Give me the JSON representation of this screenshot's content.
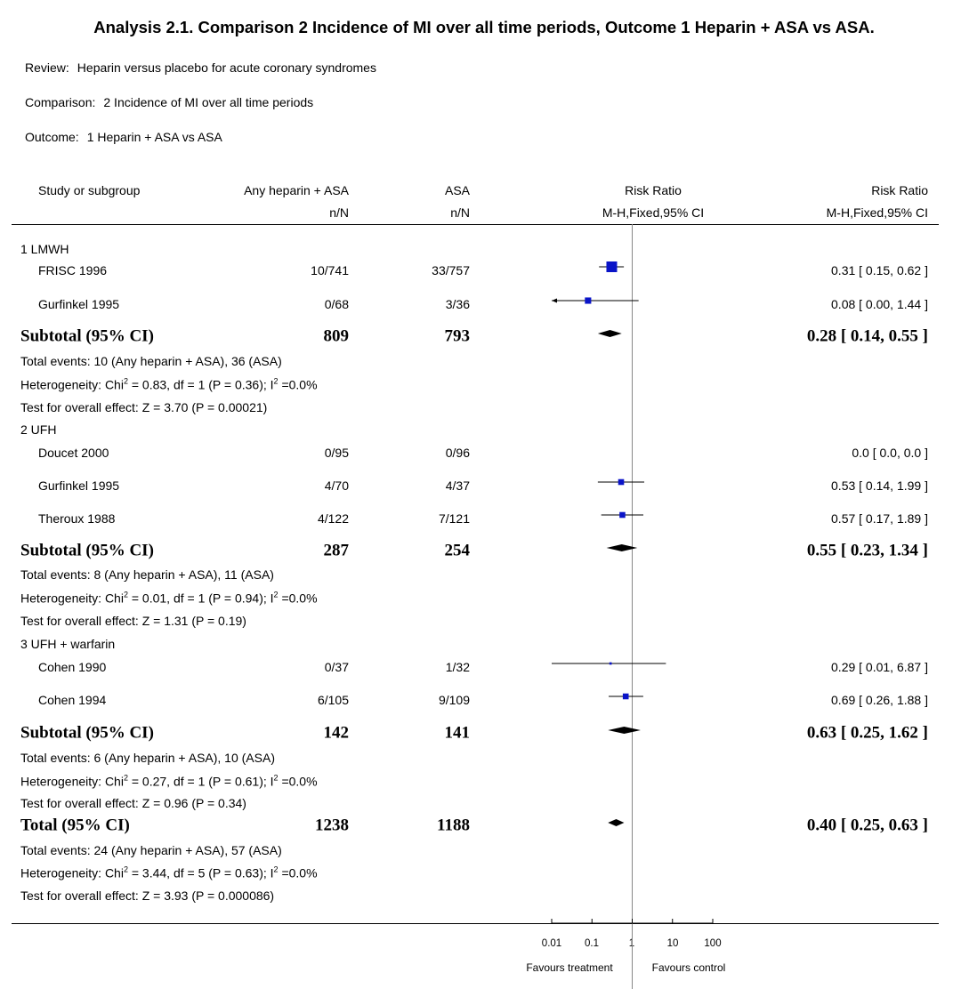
{
  "title": "Analysis 2.1.   Comparison 2 Incidence of MI over all time periods, Outcome 1 Heparin + ASA vs ASA.",
  "meta": {
    "review_key": "Review:",
    "review_val": "Heparin versus placebo for acute coronary syndromes",
    "comparison_key": "Comparison:",
    "comparison_val": "2 Incidence of MI over all time periods",
    "outcome_key": "Outcome:",
    "outcome_val": "1 Heparin + ASA vs ASA"
  },
  "header": {
    "study": "Study or subgroup",
    "group1": "Any heparin + ASA",
    "group1_sub": "n/N",
    "group2": "ASA",
    "group2_sub": "n/N",
    "rr_plot": "Risk Ratio",
    "rr_plot_sub": "M-H,Fixed,95% CI",
    "rr_text": "Risk Ratio",
    "rr_text_sub": "M-H,Fixed,95% CI"
  },
  "subgroups": [
    {
      "label": "1 LMWH",
      "studies": [
        {
          "name": "FRISC 1996",
          "g1": "10/741",
          "g2": "33/757",
          "ci": "0.31 [ 0.15, 0.62 ]"
        },
        {
          "name": "Gurfinkel 1995",
          "g1": "0/68",
          "g2": "3/36",
          "ci": "0.08 [ 0.00, 1.44 ]"
        }
      ],
      "subtotal": {
        "label": "Subtotal (95% CI)",
        "g1": "809",
        "g2": "793",
        "ci": "0.28 [ 0.14, 0.55 ]"
      },
      "notes": {
        "events": "Total events: 10 (Any heparin + ASA), 36 (ASA)",
        "het_a": "Heterogeneity: Chi",
        "het_b": " = 0.83, df = 1 (P = 0.36); I",
        "het_c": " =0.0%",
        "test": "Test for overall effect: Z = 3.70 (P = 0.00021)"
      }
    },
    {
      "label": "2 UFH",
      "studies": [
        {
          "name": "Doucet 2000",
          "g1": "0/95",
          "g2": "0/96",
          "ci": "0.0 [ 0.0, 0.0 ]"
        },
        {
          "name": "Gurfinkel 1995",
          "g1": "4/70",
          "g2": "4/37",
          "ci": "0.53 [ 0.14, 1.99 ]"
        },
        {
          "name": "Theroux 1988",
          "g1": "4/122",
          "g2": "7/121",
          "ci": "0.57 [ 0.17, 1.89 ]"
        }
      ],
      "subtotal": {
        "label": "Subtotal (95% CI)",
        "g1": "287",
        "g2": "254",
        "ci": "0.55 [ 0.23, 1.34 ]"
      },
      "notes": {
        "events": "Total events: 8 (Any heparin + ASA), 11 (ASA)",
        "het_a": "Heterogeneity: Chi",
        "het_b": " = 0.01, df = 1 (P = 0.94); I",
        "het_c": " =0.0%",
        "test": "Test for overall effect: Z = 1.31 (P = 0.19)"
      }
    },
    {
      "label": "3 UFH + warfarin",
      "studies": [
        {
          "name": "Cohen 1990",
          "g1": "0/37",
          "g2": "1/32",
          "ci": "0.29 [ 0.01, 6.87 ]"
        },
        {
          "name": "Cohen 1994",
          "g1": "6/105",
          "g2": "9/109",
          "ci": "0.69 [ 0.26, 1.88 ]"
        }
      ],
      "subtotal": {
        "label": "Subtotal (95% CI)",
        "g1": "142",
        "g2": "141",
        "ci": "0.63 [ 0.25, 1.62 ]"
      },
      "notes": {
        "events": "Total events: 6 (Any heparin + ASA), 10 (ASA)",
        "het_a": "Heterogeneity: Chi",
        "het_b": " = 0.27, df = 1 (P = 0.61); I",
        "het_c": " =0.0%",
        "test": "Test for overall effect: Z = 0.96 (P = 0.34)"
      }
    }
  ],
  "total": {
    "label": "Total (95% CI)",
    "g1": "1238",
    "g2": "1188",
    "ci": "0.40 [ 0.25, 0.63 ]",
    "notes": {
      "events": "Total events: 24 (Any heparin + ASA), 57 (ASA)",
      "het_a": "Heterogeneity: Chi",
      "het_b": " = 3.44, df = 5 (P = 0.63); I",
      "het_c": " =0.0%",
      "test": "Test for overall effect: Z = 3.93 (P = 0.000086)"
    }
  },
  "sup_digit": "2",
  "axis": {
    "ticks": [
      "0.01",
      "0.1",
      "1",
      "10",
      "100"
    ],
    "left_label": "Favours treatment",
    "right_label": "Favours control"
  },
  "colors": {
    "study_square": "#0a14c8",
    "lines": "#000000",
    "zero_line": "#888888"
  },
  "chart_data": {
    "type": "forest",
    "scale": "log",
    "xlim": [
      0.01,
      100
    ],
    "studies": [
      {
        "name": "FRISC 1996",
        "subgroup": "1 LMWH",
        "rr": 0.31,
        "lo": 0.15,
        "hi": 0.62,
        "weight": 1.0
      },
      {
        "name": "Gurfinkel 1995",
        "subgroup": "1 LMWH",
        "rr": 0.08,
        "lo": 0.0,
        "hi": 1.44,
        "weight": 0.35,
        "arrow_left": true
      },
      {
        "name": "Doucet 2000",
        "subgroup": "2 UFH",
        "rr": null,
        "lo": null,
        "hi": null,
        "weight": 0
      },
      {
        "name": "Gurfinkel 1995",
        "subgroup": "2 UFH",
        "rr": 0.53,
        "lo": 0.14,
        "hi": 1.99,
        "weight": 0.3
      },
      {
        "name": "Theroux 1988",
        "subgroup": "2 UFH",
        "rr": 0.57,
        "lo": 0.17,
        "hi": 1.89,
        "weight": 0.3
      },
      {
        "name": "Cohen 1990",
        "subgroup": "3 UFH + warfarin",
        "rr": 0.29,
        "lo": 0.01,
        "hi": 6.87,
        "weight": 0.05
      },
      {
        "name": "Cohen 1994",
        "subgroup": "3 UFH + warfarin",
        "rr": 0.69,
        "lo": 0.26,
        "hi": 1.88,
        "weight": 0.3
      }
    ],
    "pooled": [
      {
        "name": "Subtotal 1 LMWH",
        "rr": 0.28,
        "lo": 0.14,
        "hi": 0.55
      },
      {
        "name": "Subtotal 2 UFH",
        "rr": 0.55,
        "lo": 0.23,
        "hi": 1.34
      },
      {
        "name": "Subtotal 3 UFH + warfarin",
        "rr": 0.63,
        "lo": 0.25,
        "hi": 1.62
      },
      {
        "name": "Total",
        "rr": 0.4,
        "lo": 0.25,
        "hi": 0.63
      }
    ]
  }
}
